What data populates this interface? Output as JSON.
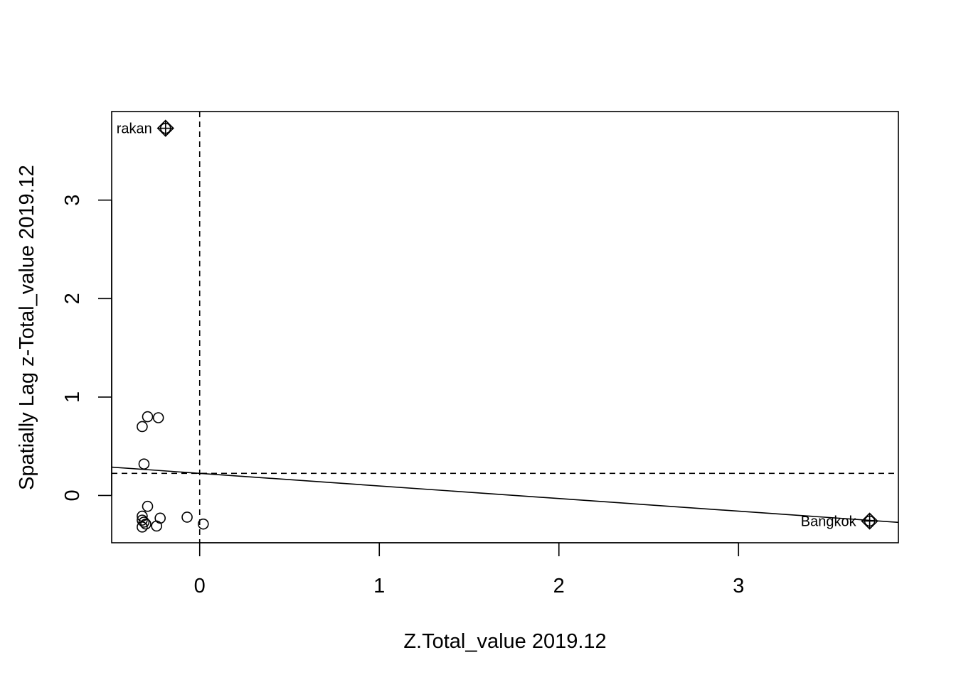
{
  "chart_data": {
    "type": "scatter",
    "title": "",
    "xlabel": "Z.Total_value 2019.12",
    "ylabel": "Spatially Lag z-Total_value 2019.12",
    "xlim": [
      -0.49,
      3.89
    ],
    "ylim": [
      -0.48,
      3.9
    ],
    "xticks": [
      0,
      1,
      2,
      3
    ],
    "yticks": [
      0,
      1,
      2,
      3
    ],
    "grid": false,
    "legend": "none",
    "points": [
      {
        "x": -0.32,
        "y": 0.7
      },
      {
        "x": -0.29,
        "y": 0.8
      },
      {
        "x": -0.23,
        "y": 0.79
      },
      {
        "x": -0.31,
        "y": 0.32
      },
      {
        "x": -0.29,
        "y": -0.11
      },
      {
        "x": -0.32,
        "y": -0.21
      },
      {
        "x": -0.32,
        "y": -0.25
      },
      {
        "x": -0.31,
        "y": -0.27
      },
      {
        "x": -0.3,
        "y": -0.29
      },
      {
        "x": -0.32,
        "y": -0.32
      },
      {
        "x": -0.24,
        "y": -0.31
      },
      {
        "x": -0.22,
        "y": -0.23
      },
      {
        "x": -0.07,
        "y": -0.22
      },
      {
        "x": 0.02,
        "y": -0.29
      }
    ],
    "influential": [
      {
        "label": "rakan",
        "x": -0.19,
        "y": 3.73,
        "label_side": "left"
      },
      {
        "label": "Bangkok",
        "x": 3.73,
        "y": -0.26,
        "label_side": "left"
      }
    ],
    "regression_line": {
      "intercept": 0.225,
      "slope": -0.128
    },
    "mean_lines": {
      "x": 0,
      "y": 0.225
    }
  }
}
